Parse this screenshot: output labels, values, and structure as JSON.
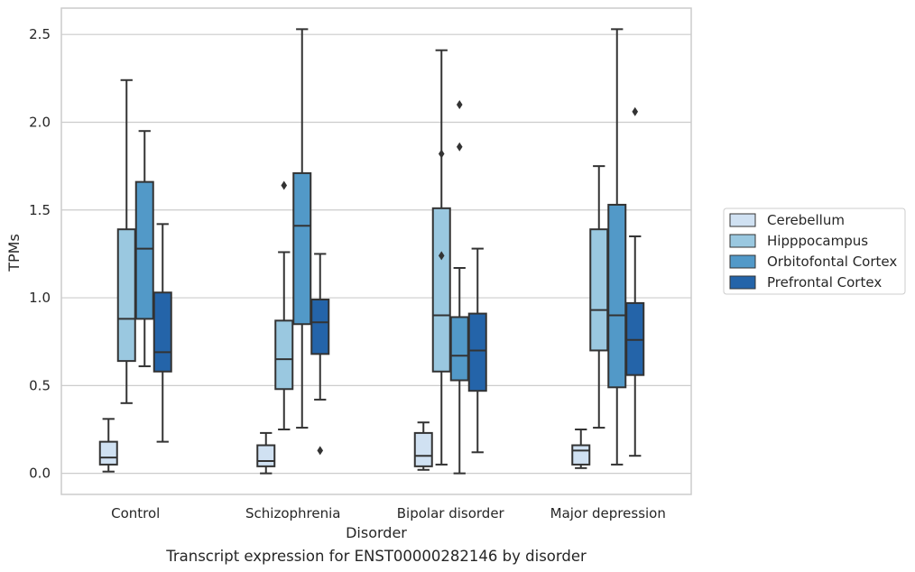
{
  "chart_data": {
    "type": "box",
    "xlabel": "Disorder",
    "ylabel": "TPMs",
    "caption": "Transcript expression for ENST00000282146 by disorder",
    "ylim": [
      -0.12,
      2.65
    ],
    "yticks": [
      "0.0",
      "0.5",
      "1.0",
      "1.5",
      "2.0",
      "2.5"
    ],
    "grid": "horizontal",
    "legend_position": "right",
    "categories": [
      "Control",
      "Schizophrenia",
      "Bipolar disorder",
      "Major depression"
    ],
    "series": [
      {
        "name": "Cerebellum",
        "color": "#d0e1f2",
        "boxes": [
          {
            "whislo": 0.01,
            "q1": 0.05,
            "med": 0.09,
            "q3": 0.18,
            "whishi": 0.31,
            "fliers": []
          },
          {
            "whislo": 0.0,
            "q1": 0.04,
            "med": 0.07,
            "q3": 0.16,
            "whishi": 0.23,
            "fliers": []
          },
          {
            "whislo": 0.02,
            "q1": 0.04,
            "med": 0.1,
            "q3": 0.23,
            "whishi": 0.29,
            "fliers": []
          },
          {
            "whislo": 0.03,
            "q1": 0.05,
            "med": 0.13,
            "q3": 0.16,
            "whishi": 0.25,
            "fliers": []
          }
        ]
      },
      {
        "name": "Hipppocampus",
        "color": "#9ac8e0",
        "boxes": [
          {
            "whislo": 0.4,
            "q1": 0.64,
            "med": 0.88,
            "q3": 1.39,
            "whishi": 2.24,
            "fliers": []
          },
          {
            "whislo": 0.25,
            "q1": 0.48,
            "med": 0.65,
            "q3": 0.87,
            "whishi": 1.26,
            "fliers": [
              1.64
            ]
          },
          {
            "whislo": 0.05,
            "q1": 0.58,
            "med": 0.9,
            "q3": 1.51,
            "whishi": 2.41,
            "fliers": [
              1.82,
              1.24
            ]
          },
          {
            "whislo": 0.26,
            "q1": 0.7,
            "med": 0.93,
            "q3": 1.39,
            "whishi": 1.75,
            "fliers": []
          }
        ]
      },
      {
        "name": "Orbitofontal Cortex",
        "color": "#5299c8",
        "boxes": [
          {
            "whislo": 0.61,
            "q1": 0.88,
            "med": 1.28,
            "q3": 1.66,
            "whishi": 1.95,
            "fliers": []
          },
          {
            "whislo": 0.26,
            "q1": 0.85,
            "med": 1.41,
            "q3": 1.71,
            "whishi": 2.53,
            "fliers": []
          },
          {
            "whislo": 0.0,
            "q1": 0.53,
            "med": 0.67,
            "q3": 0.89,
            "whishi": 1.17,
            "fliers": [
              2.1,
              1.86
            ]
          },
          {
            "whislo": 0.05,
            "q1": 0.49,
            "med": 0.9,
            "q3": 1.53,
            "whishi": 2.53,
            "fliers": []
          }
        ]
      },
      {
        "name": "Prefrontal Cortex",
        "color": "#2464a9",
        "boxes": [
          {
            "whislo": 0.18,
            "q1": 0.58,
            "med": 0.69,
            "q3": 1.03,
            "whishi": 1.42,
            "fliers": []
          },
          {
            "whislo": 0.42,
            "q1": 0.68,
            "med": 0.86,
            "q3": 0.99,
            "whishi": 1.25,
            "fliers": [
              0.13
            ]
          },
          {
            "whislo": 0.12,
            "q1": 0.47,
            "med": 0.7,
            "q3": 0.91,
            "whishi": 1.28,
            "fliers": []
          },
          {
            "whislo": 0.1,
            "q1": 0.56,
            "med": 0.76,
            "q3": 0.97,
            "whishi": 1.35,
            "fliers": [
              2.06
            ]
          }
        ]
      }
    ]
  }
}
